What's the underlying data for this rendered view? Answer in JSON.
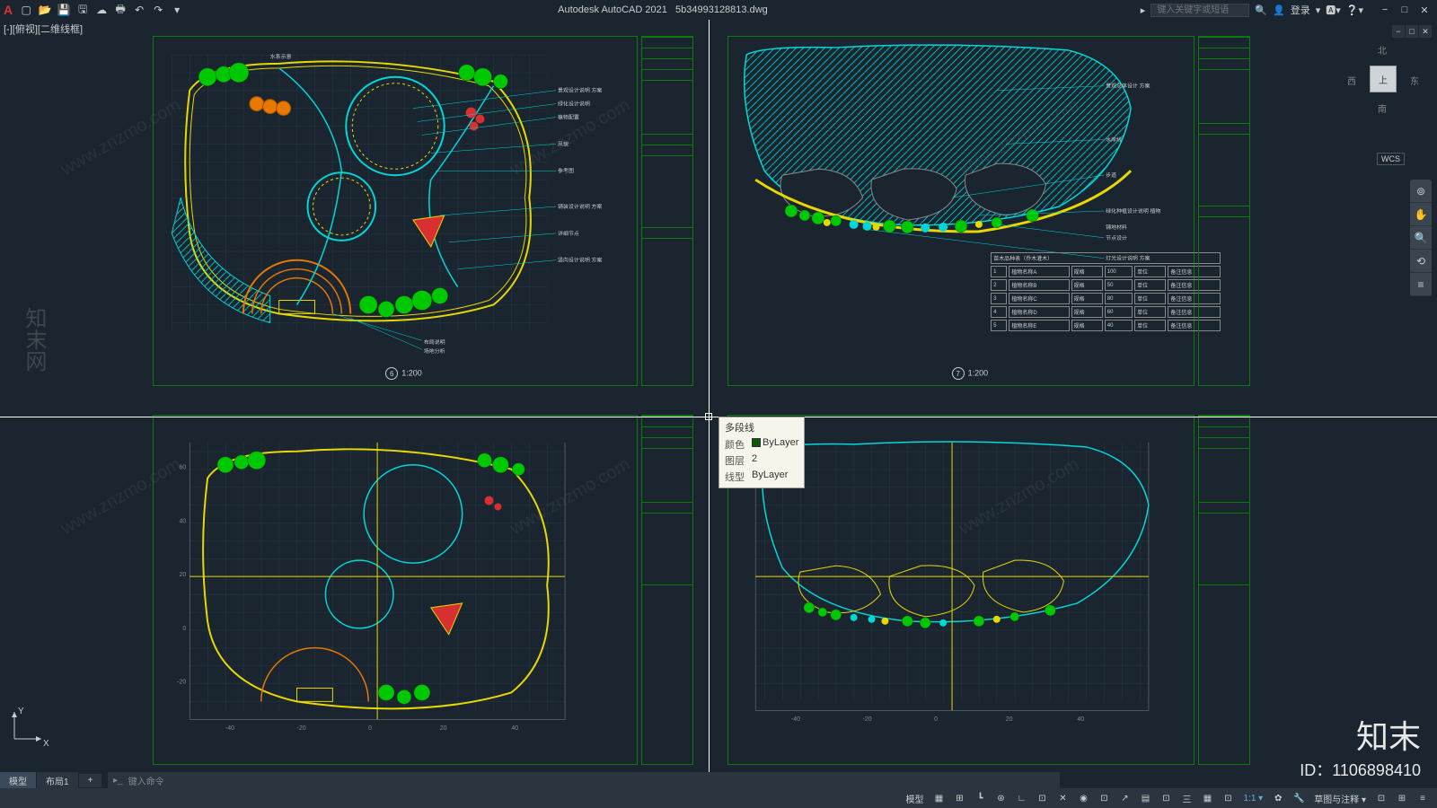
{
  "app": {
    "title": "Autodesk AutoCAD 2021",
    "filename": "5b34993128813.dwg",
    "logo": "A"
  },
  "titlebar": {
    "search_placeholder": "键入关键字或短语",
    "login": "登录",
    "icons_left": [
      "new",
      "open",
      "save",
      "saveas",
      "plot",
      "undo",
      "redo"
    ]
  },
  "window": {
    "min": "−",
    "max": "□",
    "close": "✕"
  },
  "viewport": {
    "label": "[-][俯视][二维线框]",
    "cube_face": "上",
    "compass": {
      "n": "北",
      "s": "南",
      "e": "东",
      "w": "西"
    },
    "wcs": "WCS"
  },
  "tooltip": {
    "title": "多段线",
    "rows": [
      {
        "label": "颜色",
        "value": "ByLayer",
        "swatch": "#0a5a0a"
      },
      {
        "label": "图层",
        "value": "2"
      },
      {
        "label": "线型",
        "value": "ByLayer"
      }
    ]
  },
  "drawings": {
    "d1": {
      "scale_num": "6",
      "scale": "1:200"
    },
    "d2": {
      "scale_num": "7",
      "scale": "1:200",
      "legend_title": "苗木品种表（乔木灌木）"
    },
    "d3": {},
    "d4": {}
  },
  "colors": {
    "bg": "#1a2530",
    "frame": "#0a7a0a",
    "cyan": "#00d8d8",
    "yellow": "#e8d800",
    "green": "#00c800",
    "dkgreen": "#0a7a0a",
    "red": "#d83030",
    "orange": "#e87800",
    "blue": "#3060ff",
    "grid": "#2a4a5a",
    "white": "#ffffff",
    "gray": "#888888"
  },
  "tabs": {
    "model": "模型",
    "layout1": "布局1",
    "add": "+"
  },
  "cmdline": {
    "prompt": "键入命令"
  },
  "statusbar": {
    "left_label": "模型",
    "right_items": [
      "模型",
      "▦",
      "⊞",
      "┗",
      "⊡",
      "∟",
      "⊡",
      "✕",
      "◉",
      "⊡",
      "↗",
      "▤",
      "⊡",
      "三",
      "▦",
      "⊡"
    ],
    "annotation": "1:1 ▾",
    "gear": "✿",
    "scale_label": "草图与注释 ▾"
  },
  "ucs": {
    "x": "X",
    "y": "Y"
  },
  "watermark": {
    "text": "www.znzmo.com",
    "brand": "知末",
    "id": "ID：1106898410",
    "corner": "知末网"
  },
  "legend_rows": [
    [
      "1",
      "植物名称A",
      "规格",
      "100",
      "单位",
      "备注信息"
    ],
    [
      "2",
      "植物名称B",
      "规格",
      "50",
      "单位",
      "备注信息"
    ],
    [
      "3",
      "植物名称C",
      "规格",
      "80",
      "单位",
      "备注信息"
    ],
    [
      "4",
      "植物名称D",
      "规格",
      "60",
      "单位",
      "备注信息"
    ],
    [
      "5",
      "植物名称E",
      "规格",
      "40",
      "单位",
      "备注信息"
    ]
  ]
}
